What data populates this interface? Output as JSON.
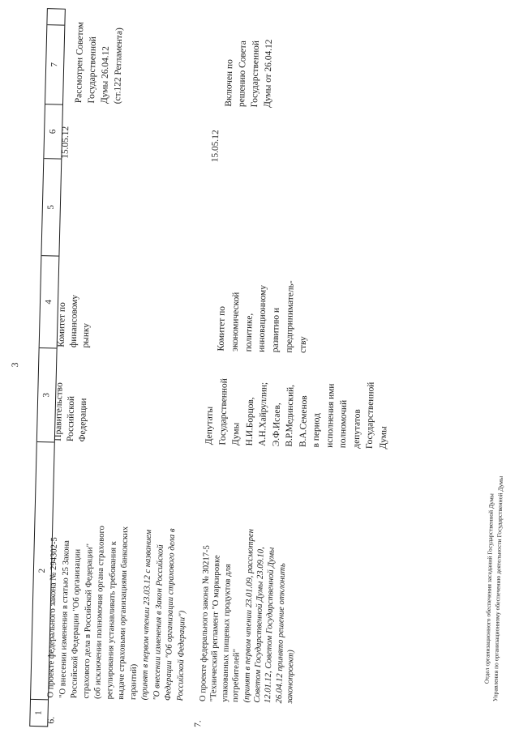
{
  "page": {
    "number": "3",
    "footer": {
      "line1": "Отдел организационного обеспечения заседаний Государственной Думы",
      "line2": "Управления по организационному обеспечению деятельности Государственной Думы"
    }
  },
  "table": {
    "header_columns": [
      "1",
      "2",
      "3",
      "4",
      "5",
      "6",
      "7",
      ""
    ],
    "rows": [
      {
        "num": "6.",
        "col2_regular": [
          "О проекте федерального закона № 294302-5",
          "\"О внесении изменения в статью 25 Закона",
          "Российской Федерации \"Об организации",
          "страхового дела в Российской Федерации\"",
          "(об исключении полномочия органа страхового",
          "регулирования устанавливать требования к",
          "выдаче страховыми организациями банковских",
          "гарантий)"
        ],
        "col2_italic": [
          "(принят в первом чтении 23.03.12 с названием",
          "\"О внесении изменения в Закон Российской",
          "Федерации \"Об организации страхового дела в",
          "Российской Федерации\")"
        ],
        "col3_lines": [
          "Правительство",
          "Российской",
          "Федерации"
        ],
        "col4_lines": [
          "Комитет по",
          "финансовому",
          "рынку"
        ],
        "col5": "",
        "col6": "15.05.12",
        "col7_lines": [
          "Рассмотрен Советом",
          "Государственной",
          "Думы 26.04.12",
          "(ст.122 Регламента)"
        ]
      },
      {
        "num": "7.",
        "col2_regular": [
          "О проекте федерального закона № 30217-5",
          "\"Технический регламент \"О маркировке",
          "упакованных пищевых продуктов для",
          "потребителей\""
        ],
        "col2_italic": [
          "(принят в первом чтении 23.01.09, рассмотрен",
          "Советом Государственной Думы 23.09.10,",
          "12.01.12, Советом Государственной Думы",
          "26.04.12 принято решение отклонить",
          "законопроект)"
        ],
        "col3_lines": [
          "Депутаты",
          "Государственной",
          "Думы",
          "Н.И.Борцов,",
          "А.Н.Хайруллин;",
          "Э.Ф.Исаев,",
          "В.Р.Мединский,",
          "В.А.Семенов",
          "в период",
          "исполнения ими",
          "полномочий",
          "депутатов",
          "Государственной",
          "Думы"
        ],
        "col4_lines": [
          "Комитет по",
          "экономической",
          "политике,",
          "инновационному",
          "развитию и",
          "предприниматель-",
          "ству"
        ],
        "col5": "",
        "col6": "15.05.12",
        "col7_lines": [
          "Включен по",
          "решению Совета",
          "Государственной",
          "Думы от 26.04.12"
        ]
      }
    ]
  },
  "colors": {
    "ink": "#1b1b1b",
    "paper": "#ffffff"
  }
}
